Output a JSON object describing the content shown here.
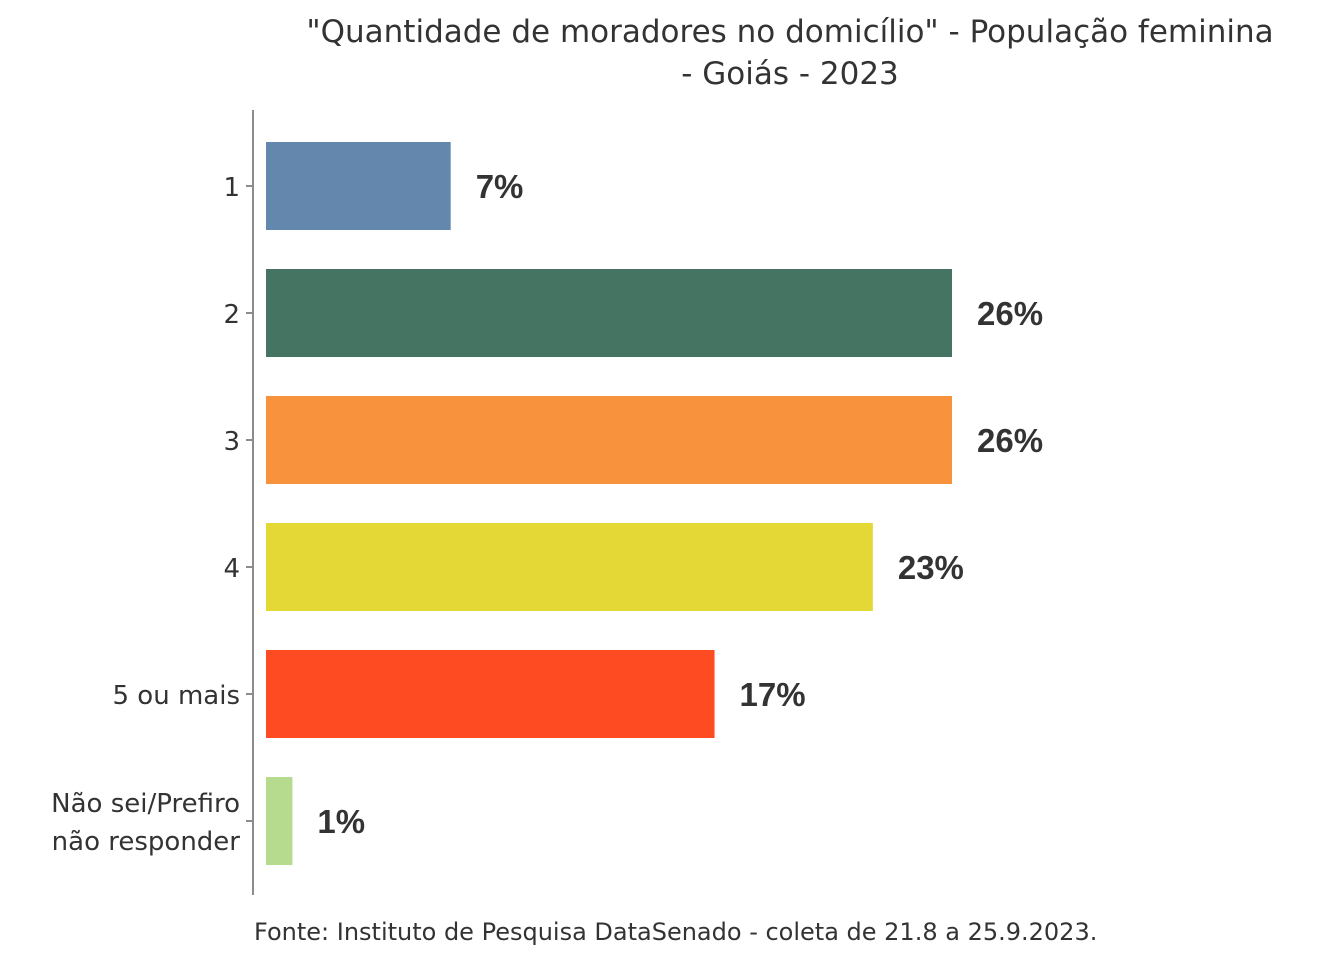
{
  "chart_data": {
    "type": "bar",
    "orientation": "horizontal",
    "title_lines": [
      "\"Quantidade de moradores no domicílio\" - População feminina",
      "- Goiás - 2023"
    ],
    "categories": [
      "1",
      "2",
      "3",
      "4",
      "5 ou mais",
      "Não sei/Prefiro\nnão responder"
    ],
    "category_lines": [
      [
        "1"
      ],
      [
        "2"
      ],
      [
        "3"
      ],
      [
        "4"
      ],
      [
        "5 ou mais"
      ],
      [
        "Não sei/Prefiro",
        "não responder"
      ]
    ],
    "values": [
      7,
      26,
      26,
      23,
      17,
      1
    ],
    "value_labels": [
      "7%",
      "26%",
      "26%",
      "23%",
      "17%",
      "1%"
    ],
    "colors": [
      "#6487AE",
      "#467462",
      "#F8923D",
      "#E3D836",
      "#FF4B21",
      "#B6DA8E"
    ],
    "xlabel": "",
    "ylabel": "",
    "xlim": [
      0,
      30
    ],
    "grid": false,
    "legend": "none",
    "caption": "Fonte: Instituto de Pesquisa DataSenado - coleta de 21.8 a 25.9.2023."
  }
}
